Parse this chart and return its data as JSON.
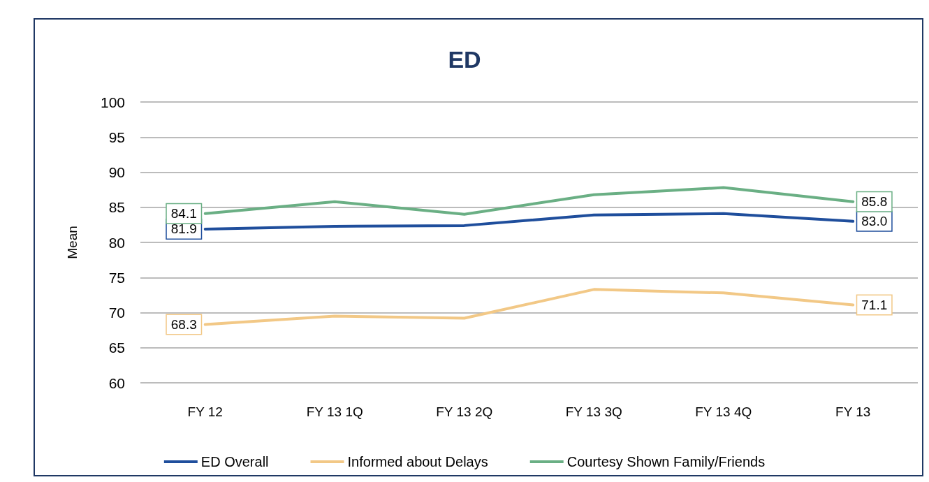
{
  "chart_data": {
    "type": "line",
    "title": "ED",
    "ylabel": "Mean",
    "categories": [
      "FY 12",
      "FY 13 1Q",
      "FY 13 2Q",
      "FY 13 3Q",
      "FY 13 4Q",
      "FY 13"
    ],
    "series": [
      {
        "name": "ED Overall",
        "color": "#1f4e9c",
        "values": [
          81.9,
          82.3,
          82.4,
          83.9,
          84.1,
          83.0
        ],
        "value_labels": [
          "81.9",
          null,
          null,
          null,
          null,
          "83.0"
        ]
      },
      {
        "name": "Informed about Delays",
        "color": "#f2c886",
        "values": [
          68.3,
          69.5,
          69.2,
          73.3,
          72.8,
          71.1
        ],
        "value_labels": [
          "68.3",
          null,
          null,
          null,
          null,
          "71.1"
        ]
      },
      {
        "name": "Courtesy Shown Family/Friends",
        "color": "#6aaf84",
        "values": [
          84.1,
          85.8,
          84.0,
          86.8,
          87.8,
          85.8
        ],
        "value_labels": [
          "84.1",
          null,
          null,
          null,
          null,
          "85.8"
        ]
      }
    ],
    "ylim": [
      60,
      100
    ],
    "yticks": [
      60,
      65,
      70,
      75,
      80,
      85,
      90,
      95,
      100
    ],
    "grid": "y",
    "legend": "bottom",
    "marker": "none",
    "line_style": "solid"
  }
}
